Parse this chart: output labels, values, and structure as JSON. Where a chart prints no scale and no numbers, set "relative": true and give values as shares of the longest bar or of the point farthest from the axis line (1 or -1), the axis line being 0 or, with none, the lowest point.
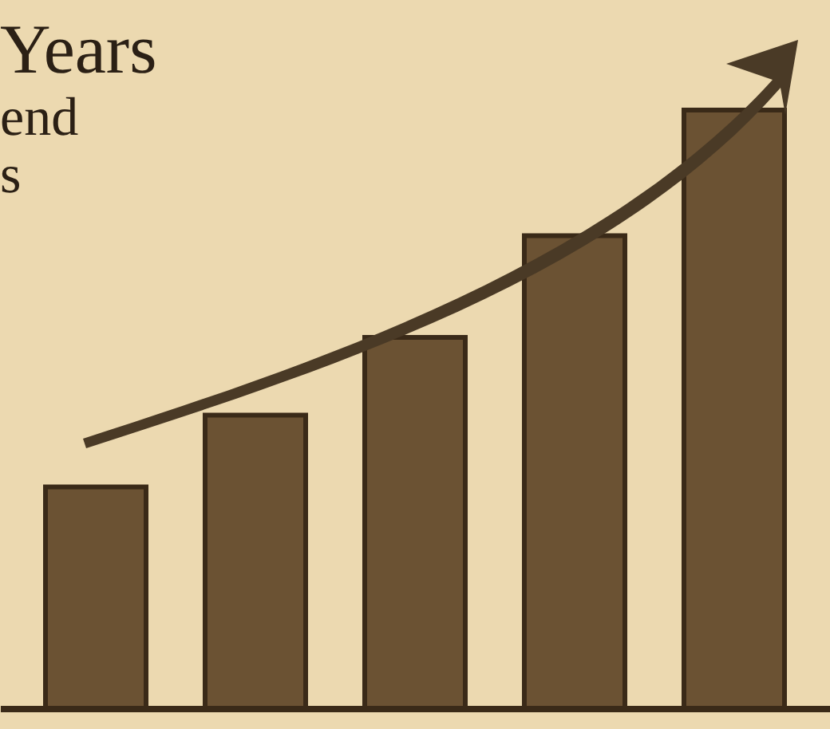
{
  "chart_data": {
    "type": "bar",
    "title": "Years",
    "annotations": [
      "end",
      "s"
    ],
    "categories": [
      null,
      null,
      null,
      null,
      null
    ],
    "values": [
      0.37,
      0.49,
      0.62,
      0.79,
      1
    ],
    "color": "#6b5233",
    "relative": true,
    "grid": false
  }
}
